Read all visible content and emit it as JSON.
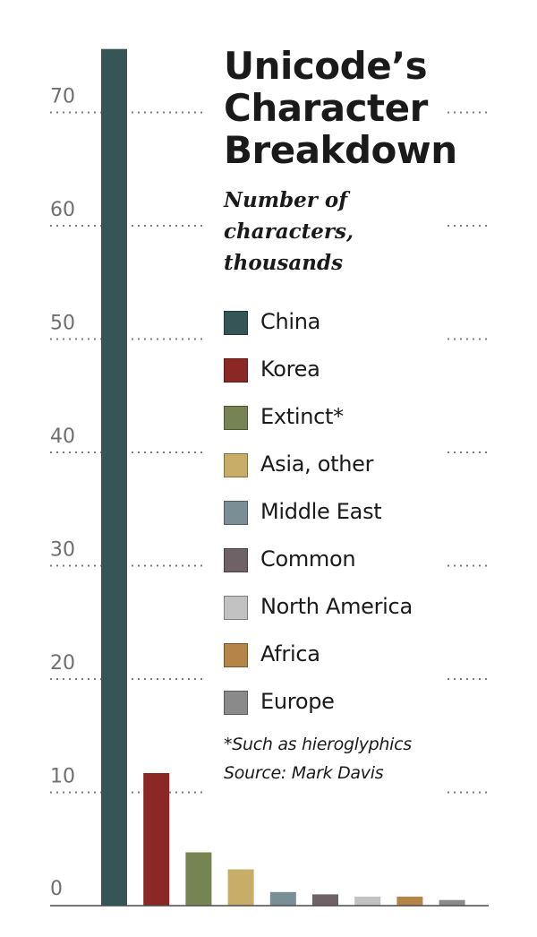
{
  "chart_data": {
    "type": "bar",
    "title": "Unicode’s Character Breakdown",
    "subtitle": "Number of characters, thousands",
    "categories": [
      "China",
      "Korea",
      "Extinct*",
      "Asia, other",
      "Middle East",
      "Common",
      "North America",
      "Africa",
      "Europe"
    ],
    "values": [
      75.6,
      11.7,
      4.7,
      3.2,
      1.2,
      1.0,
      0.8,
      0.8,
      0.5
    ],
    "colors": [
      "#355557",
      "#8b2724",
      "#768352",
      "#c8ad68",
      "#7a8e96",
      "#6f6266",
      "#c2c2c2",
      "#b58548",
      "#8a8a8a"
    ],
    "yticks": [
      "0",
      "10",
      "20",
      "30",
      "40",
      "50",
      "60",
      "70"
    ],
    "ylim": [
      0,
      76
    ],
    "grid": true,
    "legend_position": "right",
    "footnote": "*Such as hieroglyphics",
    "source": "Source: Mark Davis"
  }
}
